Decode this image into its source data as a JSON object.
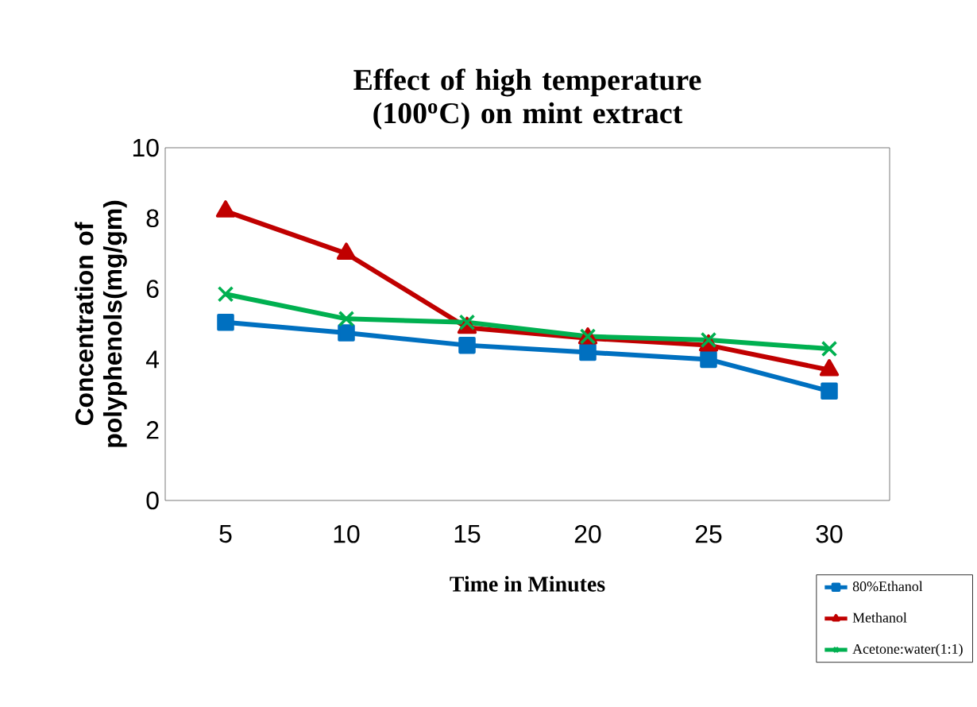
{
  "chart_data": {
    "type": "line",
    "title": "Effect of high temperature (100$^{o}$C) on mint extract",
    "xlabel": "Time in Minutes",
    "ylabel": "Concentration of polyphenols(mg/gm)",
    "categories": [
      "5",
      "10",
      "15",
      "20",
      "25",
      "30"
    ],
    "ylim": [
      0,
      10
    ],
    "yticks": [
      0,
      2,
      4,
      6,
      8,
      10
    ],
    "grid": false,
    "legend": "bottom right",
    "line_style": "solid",
    "series": [
      {
        "name": "80%Ethanol",
        "color": "#0070c0",
        "marker": "square",
        "values": [
          5.05,
          4.75,
          4.4,
          4.2,
          4.0,
          3.1
        ]
      },
      {
        "name": "Methanol",
        "color": "#c00000",
        "marker": "triangle",
        "values": [
          8.2,
          7.0,
          4.9,
          4.6,
          4.4,
          3.7
        ]
      },
      {
        "name": "Acetone:water(1:1)",
        "color": "#00b050",
        "marker": "cross",
        "values": [
          5.85,
          5.15,
          5.05,
          4.65,
          4.55,
          4.3
        ]
      }
    ]
  }
}
